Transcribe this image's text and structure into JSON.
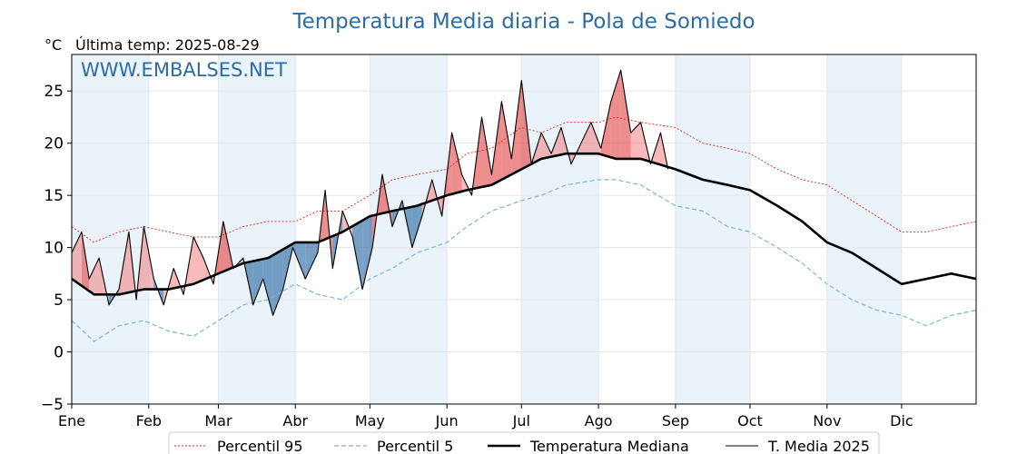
{
  "page": {
    "title": "Temperatura Media diaria - Pola de Somiedo",
    "unit_label": "°C",
    "last_temp_label": "Última temp: 2025-08-29",
    "watermark": "WWW.EMBALSES.NET"
  },
  "colors": {
    "title": "#2b6ca3",
    "watermark": "#2b6ca3",
    "p95": "#e8211a",
    "p5": "#7ab8d6",
    "median": "#000000",
    "current": "#000000",
    "fill_above": "#f08080",
    "fill_above_strong": "#e03030",
    "fill_below": "#4a80b0",
    "month_band": "#eaf2fa"
  },
  "chart_data": {
    "type": "line",
    "title": "Temperatura Media diaria - Pola de Somiedo",
    "ylim": [
      -5,
      28.5
    ],
    "yticks": [
      -5,
      0,
      5,
      10,
      15,
      20,
      25
    ],
    "x_domain_days": [
      1,
      365
    ],
    "months": [
      {
        "label": "Ene",
        "day": 1
      },
      {
        "label": "Feb",
        "day": 32
      },
      {
        "label": "Mar",
        "day": 60
      },
      {
        "label": "Abr",
        "day": 91
      },
      {
        "label": "May",
        "day": 121
      },
      {
        "label": "Jun",
        "day": 152
      },
      {
        "label": "Jul",
        "day": 182
      },
      {
        "label": "Ago",
        "day": 213
      },
      {
        "label": "Sep",
        "day": 244
      },
      {
        "label": "Oct",
        "day": 274
      },
      {
        "label": "Nov",
        "day": 305
      },
      {
        "label": "Dic",
        "day": 335
      }
    ],
    "grid": true,
    "legend_position": "bottom-center",
    "series": [
      {
        "name": "Percentil 95",
        "style": "dotted",
        "color": "#e8211a",
        "points": [
          [
            1,
            12.0
          ],
          [
            10,
            10.5
          ],
          [
            20,
            11.5
          ],
          [
            30,
            12.0
          ],
          [
            40,
            11.5
          ],
          [
            50,
            11.0
          ],
          [
            60,
            11.0
          ],
          [
            70,
            12.0
          ],
          [
            80,
            12.5
          ],
          [
            91,
            12.5
          ],
          [
            100,
            13.5
          ],
          [
            110,
            13.5
          ],
          [
            121,
            15.0
          ],
          [
            130,
            16.5
          ],
          [
            140,
            17.0
          ],
          [
            152,
            17.5
          ],
          [
            160,
            19.0
          ],
          [
            170,
            19.5
          ],
          [
            182,
            21.5
          ],
          [
            190,
            21.0
          ],
          [
            200,
            22.0
          ],
          [
            213,
            22.0
          ],
          [
            220,
            22.5
          ],
          [
            230,
            22.0
          ],
          [
            244,
            21.5
          ],
          [
            255,
            20.0
          ],
          [
            265,
            19.5
          ],
          [
            274,
            19.0
          ],
          [
            285,
            17.5
          ],
          [
            295,
            16.5
          ],
          [
            305,
            16.0
          ],
          [
            315,
            14.5
          ],
          [
            325,
            13.0
          ],
          [
            335,
            11.5
          ],
          [
            345,
            11.5
          ],
          [
            355,
            12.0
          ],
          [
            365,
            12.5
          ]
        ]
      },
      {
        "name": "Percentil 5",
        "style": "dashed",
        "color": "#7ab8d6",
        "points": [
          [
            1,
            3.0
          ],
          [
            10,
            1.0
          ],
          [
            20,
            2.5
          ],
          [
            30,
            3.0
          ],
          [
            40,
            2.0
          ],
          [
            50,
            1.5
          ],
          [
            60,
            3.0
          ],
          [
            70,
            4.5
          ],
          [
            80,
            5.0
          ],
          [
            91,
            6.5
          ],
          [
            100,
            5.5
          ],
          [
            110,
            5.0
          ],
          [
            121,
            7.0
          ],
          [
            130,
            8.0
          ],
          [
            140,
            9.5
          ],
          [
            152,
            10.5
          ],
          [
            160,
            12.0
          ],
          [
            170,
            13.5
          ],
          [
            182,
            14.5
          ],
          [
            190,
            15.0
          ],
          [
            200,
            16.0
          ],
          [
            213,
            16.5
          ],
          [
            220,
            16.5
          ],
          [
            230,
            16.0
          ],
          [
            244,
            14.0
          ],
          [
            255,
            13.5
          ],
          [
            265,
            12.0
          ],
          [
            274,
            11.5
          ],
          [
            285,
            10.0
          ],
          [
            295,
            8.5
          ],
          [
            305,
            6.5
          ],
          [
            315,
            5.0
          ],
          [
            325,
            4.0
          ],
          [
            335,
            3.5
          ],
          [
            345,
            2.5
          ],
          [
            355,
            3.5
          ],
          [
            365,
            4.0
          ]
        ]
      },
      {
        "name": "Temperatura Mediana",
        "style": "solid-bold",
        "color": "#000000",
        "points": [
          [
            1,
            7.0
          ],
          [
            10,
            5.5
          ],
          [
            20,
            5.5
          ],
          [
            30,
            6.0
          ],
          [
            40,
            6.0
          ],
          [
            50,
            6.5
          ],
          [
            60,
            7.5
          ],
          [
            70,
            8.5
          ],
          [
            80,
            9.0
          ],
          [
            91,
            10.5
          ],
          [
            100,
            10.5
          ],
          [
            110,
            11.5
          ],
          [
            121,
            13.0
          ],
          [
            130,
            13.5
          ],
          [
            140,
            14.0
          ],
          [
            152,
            15.0
          ],
          [
            160,
            15.5
          ],
          [
            170,
            16.0
          ],
          [
            182,
            17.5
          ],
          [
            190,
            18.5
          ],
          [
            200,
            19.0
          ],
          [
            213,
            19.0
          ],
          [
            220,
            18.5
          ],
          [
            230,
            18.5
          ],
          [
            244,
            17.5
          ],
          [
            255,
            16.5
          ],
          [
            265,
            16.0
          ],
          [
            274,
            15.5
          ],
          [
            285,
            14.0
          ],
          [
            295,
            12.5
          ],
          [
            305,
            10.5
          ],
          [
            315,
            9.5
          ],
          [
            325,
            8.0
          ],
          [
            335,
            6.5
          ],
          [
            345,
            7.0
          ],
          [
            355,
            7.5
          ],
          [
            365,
            7.0
          ]
        ]
      },
      {
        "name": "T. Media 2025",
        "style": "solid-thin",
        "color": "#000000",
        "points": [
          [
            1,
            9.5
          ],
          [
            5,
            11.5
          ],
          [
            8,
            7.0
          ],
          [
            12,
            9.0
          ],
          [
            16,
            4.5
          ],
          [
            20,
            6.0
          ],
          [
            24,
            11.5
          ],
          [
            27,
            5.0
          ],
          [
            30,
            12.0
          ],
          [
            34,
            7.0
          ],
          [
            38,
            4.5
          ],
          [
            42,
            8.0
          ],
          [
            46,
            5.5
          ],
          [
            50,
            11.0
          ],
          [
            54,
            9.0
          ],
          [
            58,
            6.5
          ],
          [
            62,
            12.5
          ],
          [
            66,
            8.0
          ],
          [
            70,
            9.0
          ],
          [
            74,
            4.5
          ],
          [
            78,
            7.0
          ],
          [
            82,
            3.5
          ],
          [
            86,
            6.0
          ],
          [
            90,
            10.0
          ],
          [
            95,
            7.0
          ],
          [
            100,
            9.5
          ],
          [
            103,
            15.5
          ],
          [
            106,
            8.0
          ],
          [
            110,
            13.5
          ],
          [
            114,
            11.0
          ],
          [
            118,
            6.0
          ],
          [
            122,
            10.0
          ],
          [
            126,
            17.0
          ],
          [
            130,
            12.0
          ],
          [
            134,
            14.5
          ],
          [
            138,
            10.0
          ],
          [
            142,
            13.0
          ],
          [
            146,
            16.5
          ],
          [
            150,
            13.0
          ],
          [
            154,
            21.0
          ],
          [
            158,
            17.0
          ],
          [
            162,
            15.0
          ],
          [
            166,
            22.5
          ],
          [
            170,
            17.0
          ],
          [
            174,
            24.0
          ],
          [
            178,
            18.5
          ],
          [
            182,
            26.0
          ],
          [
            186,
            18.0
          ],
          [
            190,
            21.0
          ],
          [
            194,
            19.0
          ],
          [
            198,
            21.5
          ],
          [
            202,
            18.0
          ],
          [
            206,
            20.0
          ],
          [
            210,
            22.0
          ],
          [
            214,
            19.5
          ],
          [
            218,
            24.0
          ],
          [
            222,
            27.0
          ],
          [
            226,
            21.0
          ],
          [
            230,
            22.0
          ],
          [
            234,
            18.0
          ],
          [
            238,
            21.0
          ],
          [
            241,
            17.5
          ]
        ]
      }
    ]
  },
  "legend": {
    "items": [
      {
        "label": "Percentil 95"
      },
      {
        "label": "Percentil 5"
      },
      {
        "label": "Temperatura Mediana"
      },
      {
        "label": "T. Media 2025"
      }
    ]
  }
}
